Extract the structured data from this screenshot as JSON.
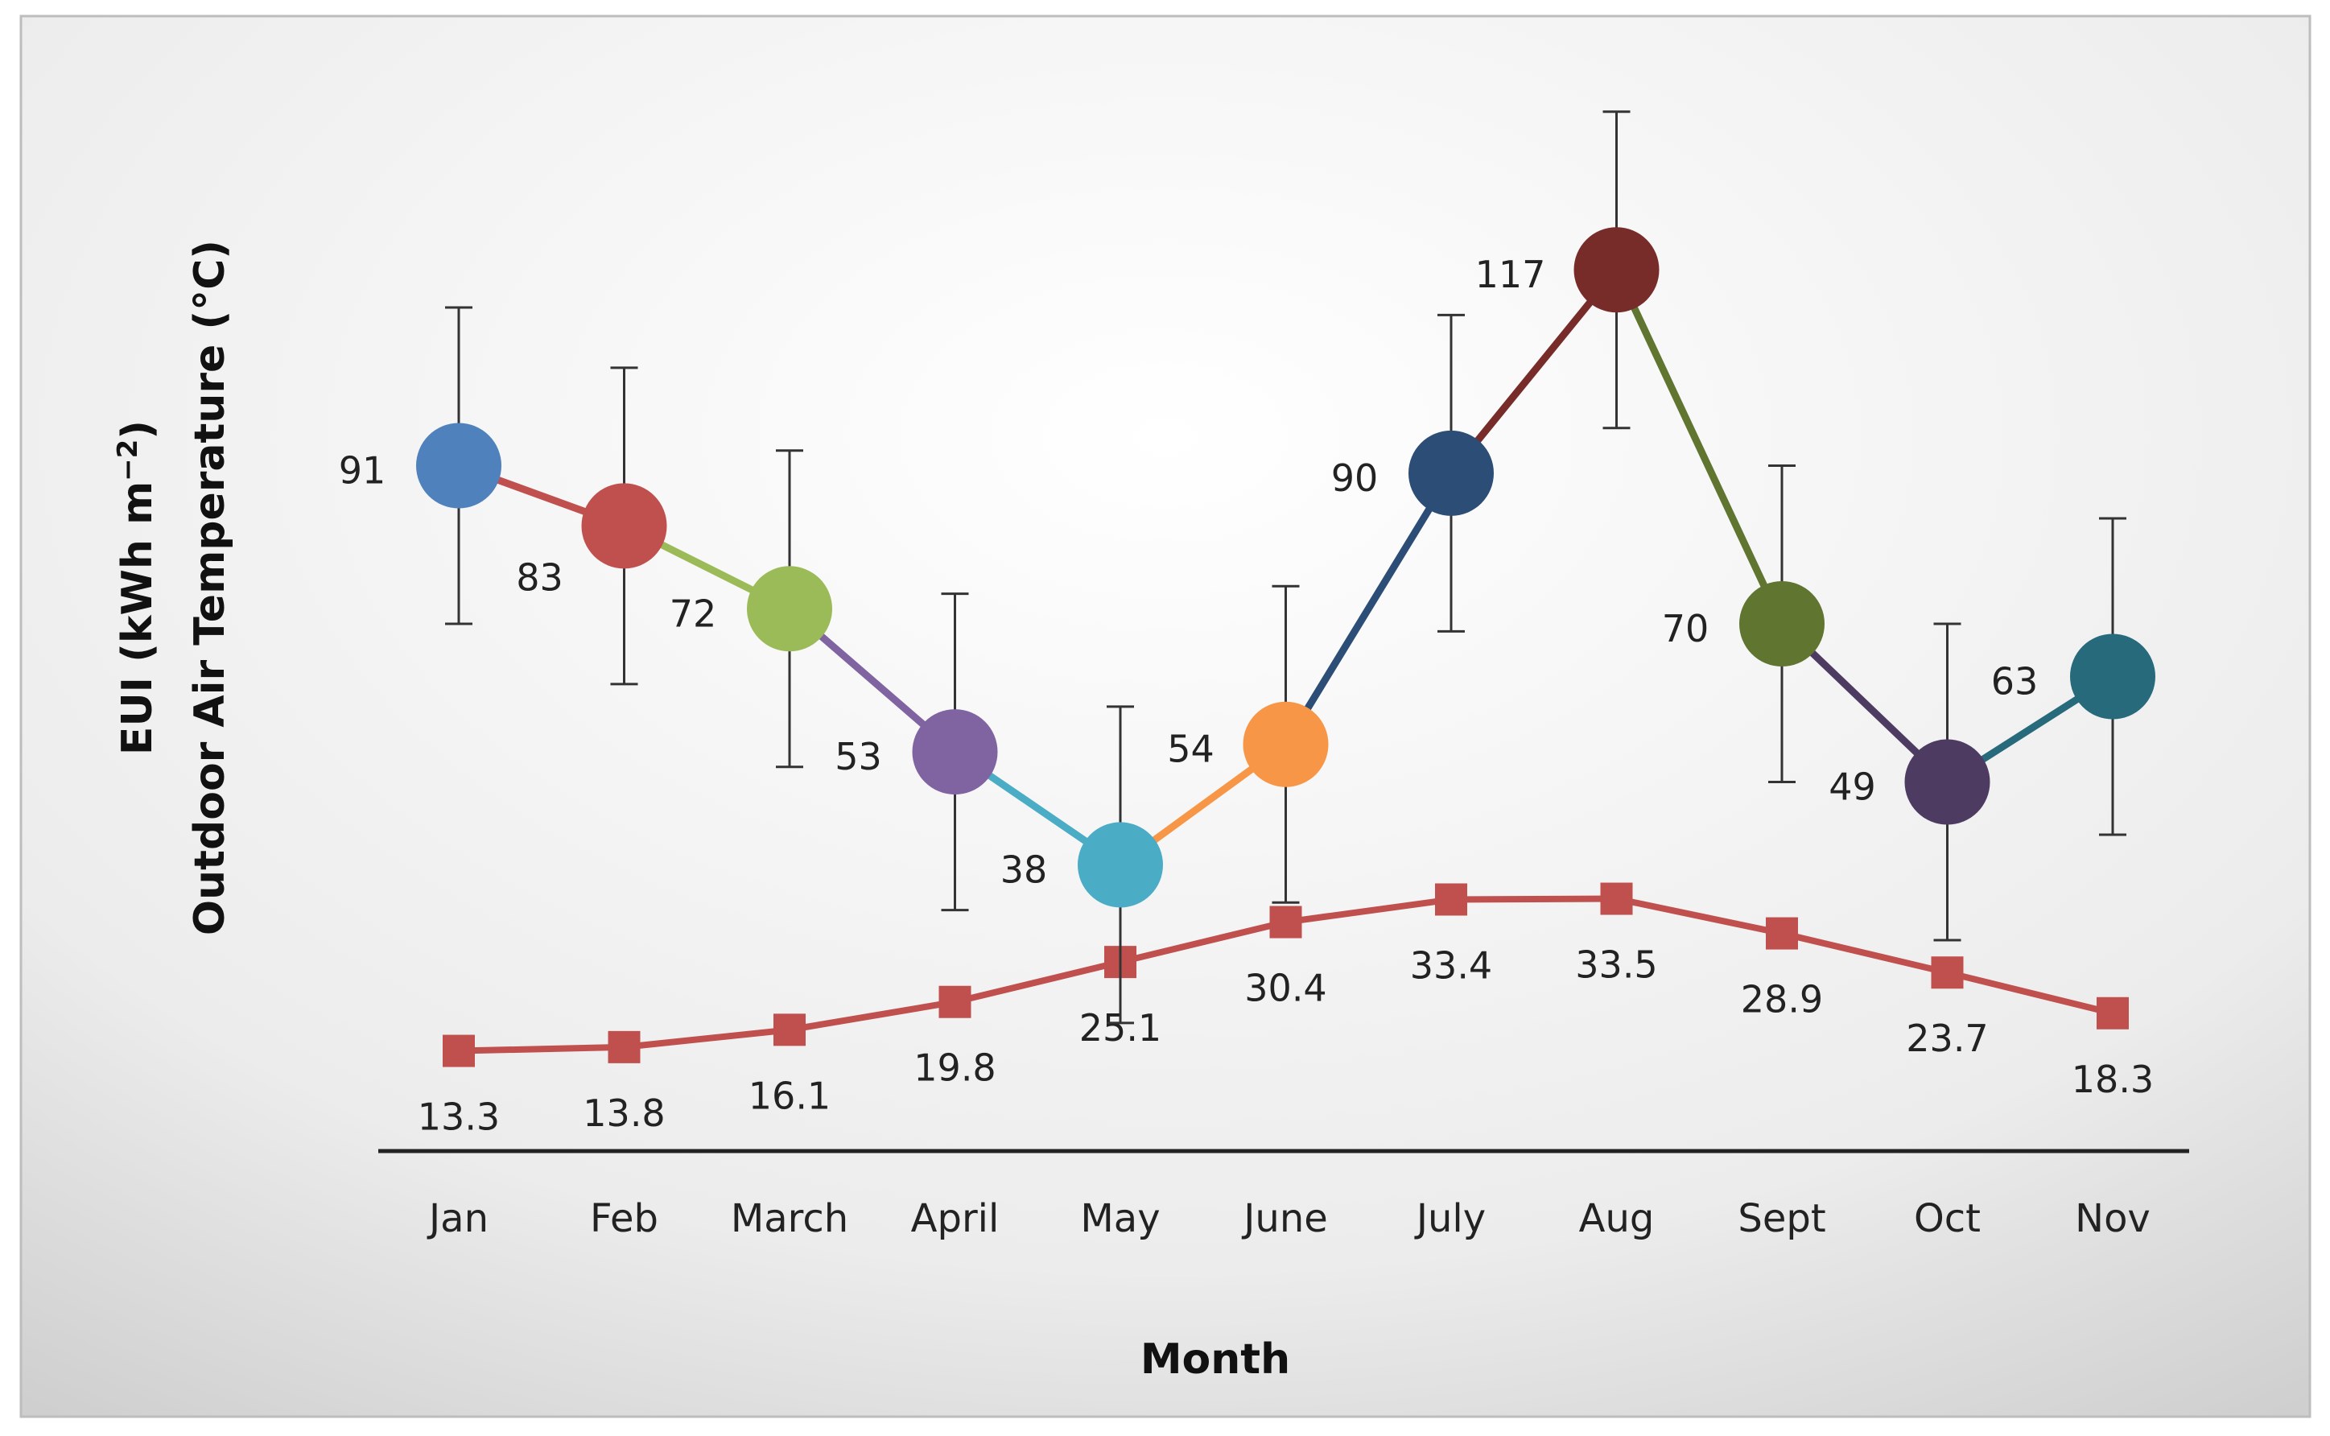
{
  "chart_data": {
    "type": "line",
    "title": "",
    "xlabel": "Month",
    "ylabel_line1": "EUI (kWh m",
    "ylabel_sup": "−2",
    "ylabel_close": ")",
    "ylabel_line2": "Outdoor Air Temperature (°C)",
    "ylim": [
      0,
      140
    ],
    "categories": [
      "Jan",
      "Feb",
      "March",
      "April",
      "May",
      "June",
      "July",
      "Aug",
      "Sept",
      "Oct",
      "Nov"
    ],
    "series": [
      {
        "name": "EUI",
        "values": [
          91,
          83,
          72,
          53,
          38,
          54,
          90,
          117,
          70,
          49,
          63
        ],
        "labels": [
          "91",
          "83",
          "72",
          "53",
          "38",
          "54",
          "90",
          "117",
          "70",
          "49",
          "63"
        ],
        "error": [
          21,
          21,
          21,
          21,
          21,
          21,
          21,
          21,
          21,
          21,
          21
        ],
        "marker": "circle",
        "colors": [
          "#4f81bd",
          "#c0504d",
          "#9bbb59",
          "#8064a2",
          "#4bacc6",
          "#f79646",
          "#2c4d75",
          "#772c2a",
          "#5f7530",
          "#4d3b62",
          "#276a7c"
        ]
      },
      {
        "name": "Outdoor Air Temperature",
        "values": [
          13.3,
          13.8,
          16.1,
          19.8,
          25.1,
          30.4,
          33.4,
          33.5,
          28.9,
          23.7,
          18.3
        ],
        "labels": [
          "13.3",
          "13.8",
          "16.1",
          "19.8",
          "25.1",
          "30.4",
          "33.4",
          "33.5",
          "28.9",
          "23.7",
          "18.3"
        ],
        "marker": "square",
        "color": "#c0504d"
      }
    ]
  }
}
